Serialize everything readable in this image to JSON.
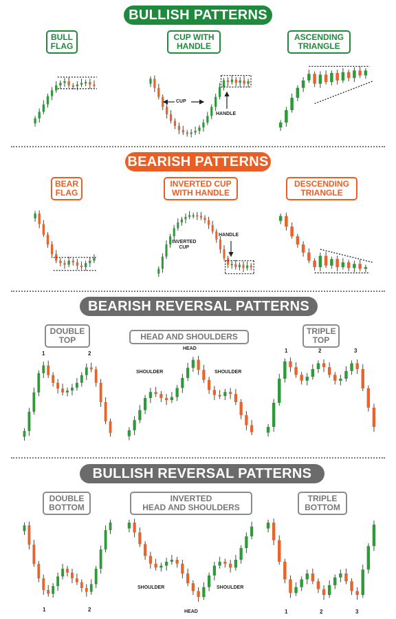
{
  "colors": {
    "bull": "#1f8a3b",
    "bear": "#ea5d23",
    "neutral": "#6b6b6b",
    "up_candle": "#2e9a3a",
    "down_candle": "#e8642a"
  },
  "sections": [
    {
      "title": "BULLISH PATTERNS",
      "patterns": [
        {
          "label": "BULL\nFLAG"
        },
        {
          "label": "CUP WITH\nHANDLE"
        },
        {
          "label": "ASCENDING\nTRIANGLE"
        }
      ]
    },
    {
      "title": "BEARISH PATTERNS",
      "patterns": [
        {
          "label": "BEAR\nFLAG"
        },
        {
          "label": "INVERTED CUP\nWITH HANDLE"
        },
        {
          "label": "DESCENDING\nTRIANGLE"
        }
      ]
    },
    {
      "title": "BEARISH REVERSAL PATTERNS",
      "patterns": [
        {
          "label": "DOUBLE\nTOP"
        },
        {
          "label": "HEAD AND SHOULDERS"
        },
        {
          "label": "TRIPLE\nTOP"
        }
      ]
    },
    {
      "title": "BULLISH REVERSAL PATTERNS",
      "patterns": [
        {
          "label": "DOUBLE\nBOTTOM"
        },
        {
          "label": "INVERTED\nHEAD AND SHOULDERS"
        },
        {
          "label": "TRIPLE\nBOTTOM"
        }
      ]
    }
  ],
  "annotations": {
    "cup": "CUP",
    "handle": "HANDLE",
    "handle_inv": "HANDLE",
    "inverted_cup": "INVERTED\nCUP",
    "head_top": "HEAD",
    "shoulder_left_top": "SHOULDER",
    "shoulder_right_top": "SHOULDER",
    "head_bottom": "HEAD",
    "shoulder_left_bottom": "SHOULDER",
    "shoulder_right_bottom": "SHOULDER"
  },
  "markers": {
    "double_top": [
      "1",
      "2"
    ],
    "triple_top": [
      "1",
      "2",
      "3"
    ],
    "double_bottom": [
      "1",
      "2"
    ],
    "triple_bottom": [
      "1",
      "2",
      "3"
    ]
  },
  "chart_data": [
    {
      "type": "candlestick",
      "name": "BULL FLAG",
      "trend": "strong rise then flag consolidation",
      "close": [
        30,
        38,
        47,
        57,
        64,
        70,
        73,
        75,
        70,
        69,
        71,
        73,
        74,
        71,
        70
      ]
    },
    {
      "type": "candlestick",
      "name": "CUP WITH HANDLE",
      "trend": "U-shaped cup then small handle",
      "close": [
        78,
        67,
        56,
        44,
        35,
        27,
        21,
        16,
        13,
        12,
        13,
        15,
        19,
        25,
        33,
        44,
        56,
        68,
        76,
        74,
        77,
        73,
        76,
        72,
        75
      ]
    },
    {
      "type": "candlestick",
      "name": "ASCENDING TRIANGLE",
      "trend": "rising lows under flat resistance",
      "close": [
        25,
        40,
        55,
        67,
        76,
        84,
        72,
        83,
        74,
        85,
        76,
        86,
        79,
        88,
        82,
        88
      ]
    },
    {
      "type": "candlestick",
      "name": "BEAR FLAG",
      "trend": "sharp drop then flag",
      "close": [
        88,
        75,
        62,
        50,
        38,
        30,
        27,
        25,
        30,
        28,
        24,
        22,
        27,
        30,
        33
      ]
    },
    {
      "type": "candlestick",
      "name": "INVERTED CUP WITH HANDLE",
      "trend": "inverted U then small handle",
      "close": [
        20,
        35,
        50,
        60,
        70,
        77,
        81,
        84,
        86,
        86,
        85,
        83,
        80,
        74,
        66,
        56,
        44,
        33,
        25,
        26,
        22,
        25,
        21,
        24,
        22
      ]
    },
    {
      "type": "candlestick",
      "name": "DESCENDING TRIANGLE",
      "trend": "falling highs above flat support",
      "close": [
        85,
        72,
        60,
        50,
        40,
        30,
        22,
        36,
        24,
        32,
        22,
        28,
        21,
        26,
        20,
        22
      ]
    },
    {
      "type": "candlestick",
      "name": "DOUBLE TOP",
      "trend": "two peaks then breakdown",
      "close": [
        20,
        40,
        60,
        80,
        88,
        78,
        70,
        64,
        60,
        62,
        65,
        70,
        78,
        86,
        84,
        70,
        50,
        30,
        18
      ]
    },
    {
      "type": "candlestick",
      "name": "HEAD AND SHOULDERS",
      "trend": "left shoulder, head, right shoulder",
      "close": [
        20,
        30,
        40,
        52,
        58,
        56,
        52,
        50,
        53,
        62,
        72,
        82,
        90,
        80,
        70,
        60,
        55,
        54,
        58,
        56,
        48,
        35,
        25,
        18
      ]
    },
    {
      "type": "candlestick",
      "name": "TRIPLE TOP",
      "trend": "three peaks then breakdown",
      "close": [
        20,
        45,
        70,
        88,
        82,
        74,
        68,
        72,
        80,
        86,
        82,
        74,
        68,
        70,
        78,
        86,
        80,
        60,
        40,
        20
      ]
    },
    {
      "type": "candlestick",
      "name": "DOUBLE BOTTOM",
      "trend": "two troughs then breakout",
      "close": [
        85,
        65,
        45,
        30,
        18,
        14,
        22,
        32,
        40,
        36,
        30,
        26,
        20,
        16,
        24,
        40,
        60,
        80,
        88
      ]
    },
    {
      "type": "candlestick",
      "name": "INVERTED HEAD AND SHOULDERS",
      "trend": "inverted shoulder, head, shoulder",
      "close": [
        88,
        78,
        66,
        54,
        46,
        42,
        44,
        48,
        50,
        46,
        36,
        26,
        18,
        12,
        22,
        34,
        44,
        48,
        46,
        42,
        50,
        62,
        74,
        84
      ]
    },
    {
      "type": "candlestick",
      "name": "TRIPLE BOTTOM",
      "trend": "three troughs then breakout",
      "close": [
        88,
        70,
        48,
        30,
        16,
        22,
        30,
        36,
        28,
        20,
        14,
        24,
        32,
        36,
        28,
        18,
        14,
        40,
        64,
        86
      ]
    }
  ]
}
